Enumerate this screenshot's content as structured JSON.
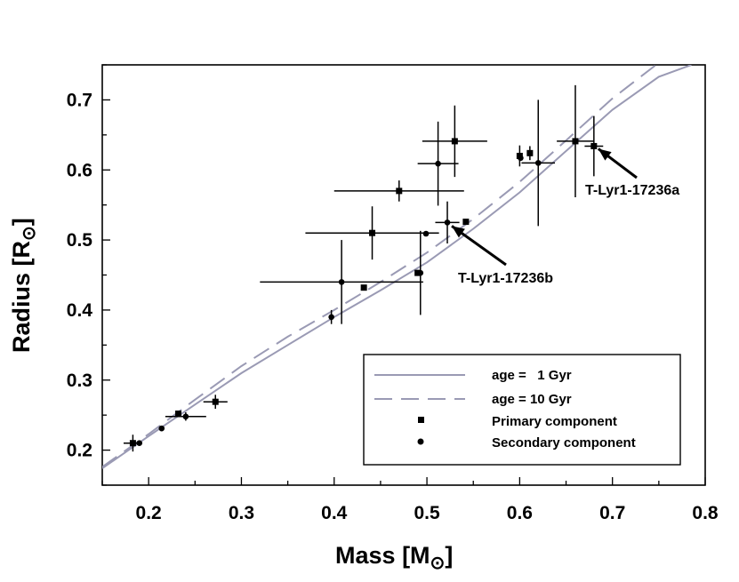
{
  "chart_data": {
    "type": "scatter",
    "xlabel": "Mass",
    "xlabel_unit": "[M",
    "ylabel": "Radius",
    "ylabel_unit": "[R",
    "unit_close": "]",
    "sun_symbol": "⊙",
    "xlim": [
      0.15,
      0.8
    ],
    "ylim": [
      0.15,
      0.75
    ],
    "xticks": [
      "0.2",
      "0.3",
      "0.4",
      "0.5",
      "0.6",
      "0.7",
      "0.8"
    ],
    "yticks": [
      "0.2",
      "0.3",
      "0.4",
      "0.5",
      "0.6",
      "0.7"
    ],
    "grid": false,
    "legend_position": "bottom-right",
    "series": [
      {
        "name": "age =   1 Gyr",
        "kind": "line",
        "style": "solid",
        "color": "#9a9ab4",
        "x": [
          0.15,
          0.2,
          0.25,
          0.3,
          0.35,
          0.4,
          0.45,
          0.5,
          0.55,
          0.6,
          0.65,
          0.7,
          0.75,
          0.785
        ],
        "y": [
          0.174,
          0.22,
          0.265,
          0.31,
          0.35,
          0.39,
          0.428,
          0.468,
          0.516,
          0.568,
          0.627,
          0.686,
          0.733,
          0.75
        ]
      },
      {
        "name": "age = 10 Gyr",
        "kind": "line",
        "style": "dashed",
        "color": "#9a9ab4",
        "x": [
          0.15,
          0.2,
          0.25,
          0.3,
          0.35,
          0.4,
          0.45,
          0.5,
          0.55,
          0.6,
          0.65,
          0.7,
          0.747
        ],
        "y": [
          0.176,
          0.223,
          0.272,
          0.32,
          0.362,
          0.4,
          0.44,
          0.482,
          0.53,
          0.583,
          0.642,
          0.702,
          0.75
        ]
      },
      {
        "name": "Primary component",
        "kind": "points",
        "marker": "square",
        "color": "#000000",
        "points": [
          {
            "x": 0.183,
            "y": 0.21,
            "xerr": 0.01,
            "yerr": 0.012
          },
          {
            "x": 0.232,
            "y": 0.252,
            "xerr": 0.0,
            "yerr": 0.0
          },
          {
            "x": 0.272,
            "y": 0.269,
            "xerr": 0.013,
            "yerr": 0.01
          },
          {
            "x": 0.432,
            "y": 0.432,
            "xerr": 0.0,
            "yerr": 0.0
          },
          {
            "x": 0.441,
            "y": 0.51,
            "xerr": 0.072,
            "yerr": 0.038
          },
          {
            "x": 0.47,
            "y": 0.57,
            "xerr": 0.07,
            "yerr": 0.015
          },
          {
            "x": 0.49,
            "y": 0.453,
            "xerr": 0.0,
            "yerr": 0.0
          },
          {
            "x": 0.53,
            "y": 0.641,
            "xerr": 0.035,
            "yerr": 0.051
          },
          {
            "x": 0.542,
            "y": 0.526,
            "xerr": 0.0,
            "yerr": 0.0
          },
          {
            "x": 0.6,
            "y": 0.62,
            "xerr": 0.0,
            "yerr": 0.015
          },
          {
            "x": 0.611,
            "y": 0.624,
            "xerr": 0.0,
            "yerr": 0.01
          },
          {
            "x": 0.66,
            "y": 0.641,
            "xerr": 0.02,
            "yerr": 0.08
          },
          {
            "x": 0.68,
            "y": 0.634,
            "xerr": 0.01,
            "yerr": 0.043
          }
        ]
      },
      {
        "name": "Secondary component",
        "kind": "points",
        "marker": "circle",
        "color": "#000000",
        "points": [
          {
            "x": 0.19,
            "y": 0.21,
            "xerr": 0.0,
            "yerr": 0.0
          },
          {
            "x": 0.214,
            "y": 0.231,
            "xerr": 0.0,
            "yerr": 0.0
          },
          {
            "x": 0.24,
            "y": 0.248,
            "xerr": 0.022,
            "yerr": 0.006
          },
          {
            "x": 0.397,
            "y": 0.39,
            "xerr": 0.0,
            "yerr": 0.01
          },
          {
            "x": 0.408,
            "y": 0.44,
            "xerr": 0.088,
            "yerr": 0.06
          },
          {
            "x": 0.493,
            "y": 0.453,
            "xerr": 0.0,
            "yerr": 0.06
          },
          {
            "x": 0.499,
            "y": 0.509,
            "xerr": 0.0,
            "yerr": 0.0
          },
          {
            "x": 0.512,
            "y": 0.609,
            "xerr": 0.022,
            "yerr": 0.06
          },
          {
            "x": 0.522,
            "y": 0.525,
            "xerr": 0.013,
            "yerr": 0.03
          },
          {
            "x": 0.601,
            "y": 0.617,
            "xerr": 0.0,
            "yerr": 0.0
          },
          {
            "x": 0.62,
            "y": 0.61,
            "xerr": 0.018,
            "yerr": 0.09
          }
        ]
      }
    ],
    "annotations": [
      {
        "text": "T-Lyr1-17236a",
        "x": 0.68,
        "y": 0.634
      },
      {
        "text": "T-Lyr1-17236b",
        "x": 0.522,
        "y": 0.525
      }
    ]
  }
}
